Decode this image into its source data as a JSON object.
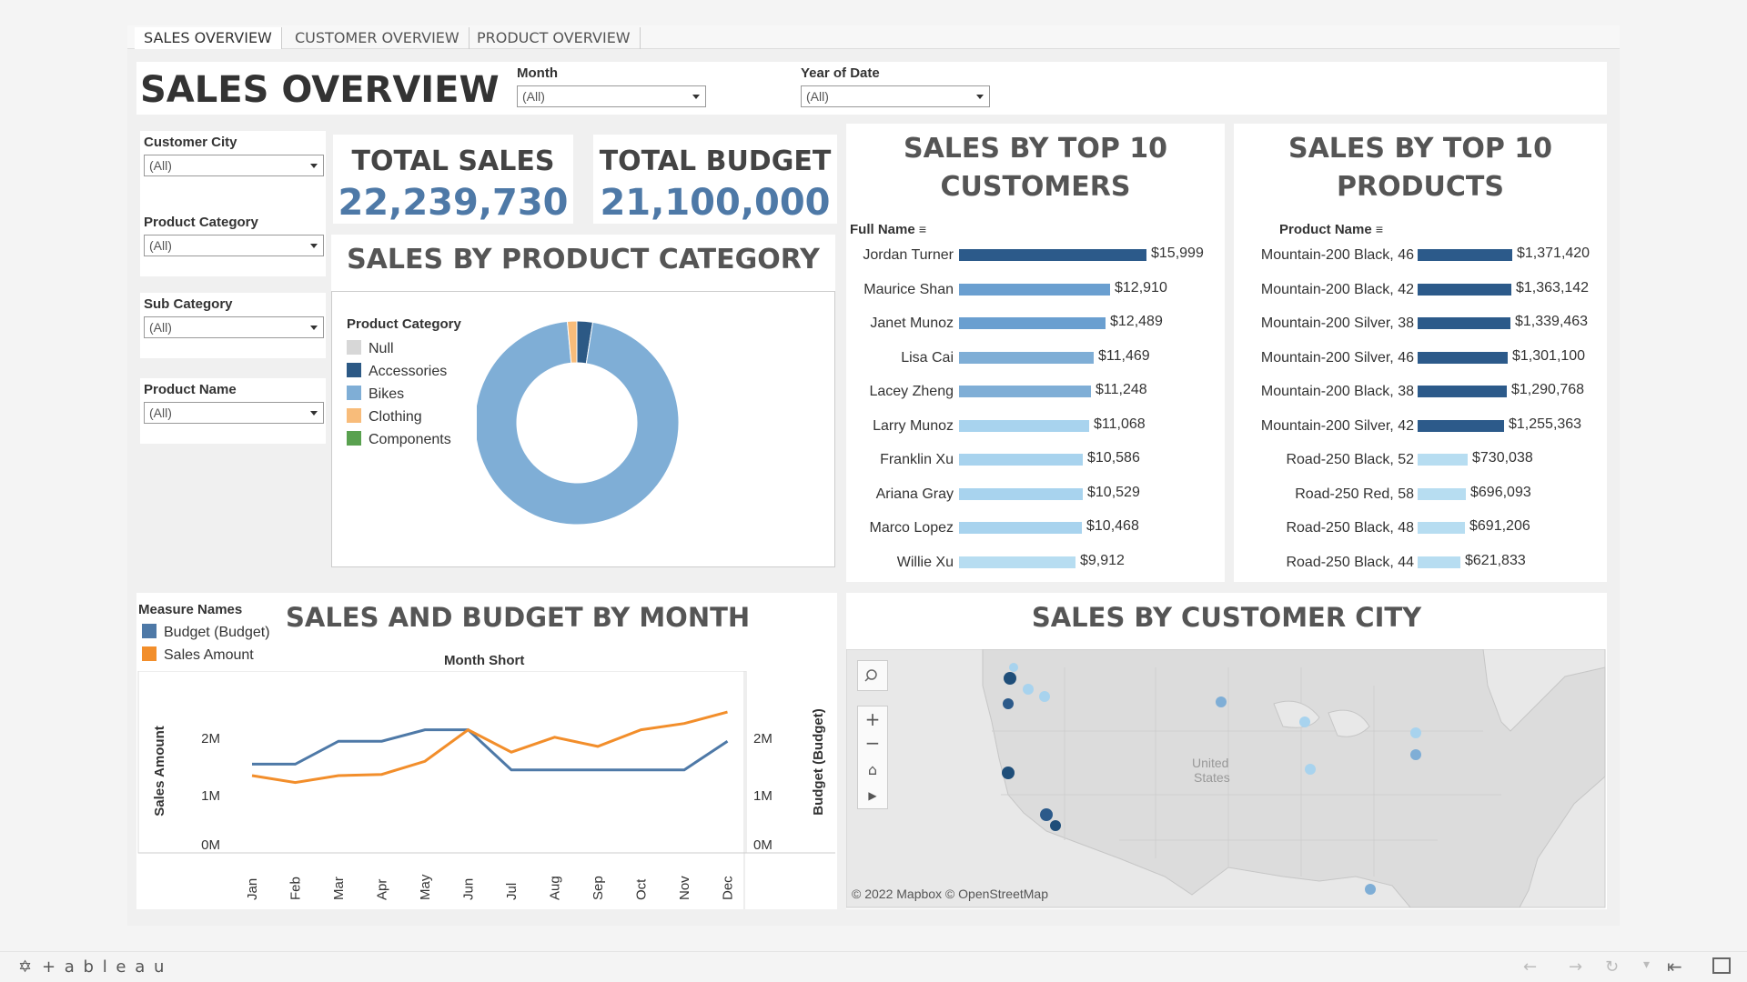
{
  "tabs": [
    {
      "label": "SALES OVERVIEW",
      "active": true
    },
    {
      "label": "CUSTOMER OVERVIEW",
      "active": false
    },
    {
      "label": "PRODUCT OVERVIEW",
      "active": false
    }
  ],
  "page_title": "SALES OVERVIEW",
  "filters": {
    "month": {
      "label": "Month",
      "value": "(All)"
    },
    "year": {
      "label": "Year of Date",
      "value": "(All)"
    },
    "customer_city": {
      "label": "Customer City",
      "value": "(All)"
    },
    "product_category": {
      "label": "Product Category",
      "value": "(All)"
    },
    "sub_category": {
      "label": "Sub Category",
      "value": "(All)"
    },
    "product_name": {
      "label": "Product Name",
      "value": "(All)"
    }
  },
  "kpis": {
    "total_sales": {
      "label": "TOTAL SALES",
      "value": "22,239,730"
    },
    "total_budget": {
      "label": "TOTAL BUDGET",
      "value": "21,100,000"
    }
  },
  "category_chart": {
    "title": "SALES BY PRODUCT CATEGORY",
    "legend_title": "Product Category",
    "legend": [
      {
        "name": "Null",
        "color": "#d7d7d7"
      },
      {
        "name": "Accessories",
        "color": "#2c5985"
      },
      {
        "name": "Bikes",
        "color": "#7faed6"
      },
      {
        "name": "Clothing",
        "color": "#f8bc7a"
      },
      {
        "name": "Components",
        "color": "#59a14f"
      }
    ]
  },
  "top_customers": {
    "title_line1": "SALES BY TOP 10",
    "title_line2": "CUSTOMERS",
    "column_header": "Full Name",
    "rows": [
      {
        "name": "Jordan Turner",
        "value": 15999,
        "label": "$15,999",
        "color": "#2c5a8a"
      },
      {
        "name": "Maurice Shan",
        "value": 12910,
        "label": "$12,910",
        "color": "#6a9fd0"
      },
      {
        "name": "Janet Munoz",
        "value": 12489,
        "label": "$12,489",
        "color": "#6a9fd0"
      },
      {
        "name": "Lisa Cai",
        "value": 11469,
        "label": "$11,469",
        "color": "#7faed6"
      },
      {
        "name": "Lacey Zheng",
        "value": 11248,
        "label": "$11,248",
        "color": "#7faed6"
      },
      {
        "name": "Larry Munoz",
        "value": 11068,
        "label": "$11,068",
        "color": "#a8d3ee"
      },
      {
        "name": "Franklin Xu",
        "value": 10586,
        "label": "$10,586",
        "color": "#a8d3ee"
      },
      {
        "name": "Ariana Gray",
        "value": 10529,
        "label": "$10,529",
        "color": "#a8d3ee"
      },
      {
        "name": "Marco Lopez",
        "value": 10468,
        "label": "$10,468",
        "color": "#a8d3ee"
      },
      {
        "name": "Willie Xu",
        "value": 9912,
        "label": "$9,912",
        "color": "#b7ddf1"
      }
    ]
  },
  "top_products": {
    "title_line1": "SALES BY TOP 10",
    "title_line2": "PRODUCTS",
    "column_header": "Product Name",
    "rows": [
      {
        "name": "Mountain-200 Black, 46",
        "value": 1371420,
        "label": "$1,371,420",
        "color": "#2c5a8a"
      },
      {
        "name": "Mountain-200 Black, 42",
        "value": 1363142,
        "label": "$1,363,142",
        "color": "#2c5a8a"
      },
      {
        "name": "Mountain-200 Silver, 38",
        "value": 1339463,
        "label": "$1,339,463",
        "color": "#2c5a8a"
      },
      {
        "name": "Mountain-200 Silver, 46",
        "value": 1301100,
        "label": "$1,301,100",
        "color": "#2c5a8a"
      },
      {
        "name": "Mountain-200 Black, 38",
        "value": 1290768,
        "label": "$1,290,768",
        "color": "#2c5a8a"
      },
      {
        "name": "Mountain-200 Silver, 42",
        "value": 1255363,
        "label": "$1,255,363",
        "color": "#2c5a8a"
      },
      {
        "name": "Road-250 Black, 52",
        "value": 730038,
        "label": "$730,038",
        "color": "#b7ddf1"
      },
      {
        "name": "Road-250 Red, 58",
        "value": 696093,
        "label": "$696,093",
        "color": "#b7ddf1"
      },
      {
        "name": "Road-250 Black, 48",
        "value": 691206,
        "label": "$691,206",
        "color": "#b7ddf1"
      },
      {
        "name": "Road-250 Black, 44",
        "value": 621833,
        "label": "$621,833",
        "color": "#b7ddf1"
      }
    ]
  },
  "monthly_chart": {
    "title": "SALES AND BUDGET BY MONTH",
    "legend_title": "Measure Names",
    "legend": [
      {
        "name": "Budget (Budget)",
        "color": "#4e79a7"
      },
      {
        "name": "Sales Amount",
        "color": "#f28e2b"
      }
    ],
    "x_header": "Month Short",
    "y_left_label": "Sales Amount",
    "y_right_label": "Budget (Budget)",
    "y_ticks": [
      "0M",
      "1M",
      "2M"
    ]
  },
  "map": {
    "title": "SALES BY CUSTOMER CITY",
    "country_label_1": "United",
    "country_label_2": "States",
    "attribution": "© 2022 Mapbox  © OpenStreetMap"
  },
  "footer": {
    "brand": "+ a b l e a u"
  },
  "chart_data": [
    {
      "type": "pie",
      "title": "SALES BY PRODUCT CATEGORY",
      "categories": [
        "Null",
        "Accessories",
        "Bikes",
        "Clothing",
        "Components"
      ],
      "values": [
        0,
        2.5,
        96.0,
        1.5,
        0
      ],
      "colors": [
        "#d7d7d7",
        "#2c5985",
        "#7faed6",
        "#f8bc7a",
        "#59a14f"
      ]
    },
    {
      "type": "bar",
      "title": "SALES BY TOP 10 CUSTOMERS",
      "categories": [
        "Jordan Turner",
        "Maurice Shan",
        "Janet Munoz",
        "Lisa Cai",
        "Lacey Zheng",
        "Larry Munoz",
        "Franklin Xu",
        "Ariana Gray",
        "Marco Lopez",
        "Willie Xu"
      ],
      "values": [
        15999,
        12910,
        12489,
        11469,
        11248,
        11068,
        10586,
        10529,
        10468,
        9912
      ]
    },
    {
      "type": "bar",
      "title": "SALES BY TOP 10 PRODUCTS",
      "categories": [
        "Mountain-200 Black, 46",
        "Mountain-200 Black, 42",
        "Mountain-200 Silver, 38",
        "Mountain-200 Silver, 46",
        "Mountain-200 Black, 38",
        "Mountain-200 Silver, 42",
        "Road-250 Black, 52",
        "Road-250 Red, 58",
        "Road-250 Black, 48",
        "Road-250 Black, 44"
      ],
      "values": [
        1371420,
        1363142,
        1339463,
        1301100,
        1290768,
        1255363,
        730038,
        696093,
        691206,
        621833
      ]
    },
    {
      "type": "line",
      "title": "SALES AND BUDGET BY MONTH",
      "xlabel": "Month Short",
      "ylabel": "Sales Amount",
      "categories": [
        "Jan",
        "Feb",
        "Mar",
        "Apr",
        "May",
        "Jun",
        "Jul",
        "Aug",
        "Sep",
        "Oct",
        "Nov",
        "Dec"
      ],
      "ylim": [
        0,
        2500000
      ],
      "series": [
        {
          "name": "Budget (Budget)",
          "color": "#4e79a7",
          "values": [
            1550000,
            1550000,
            1950000,
            1950000,
            2150000,
            2150000,
            1450000,
            1450000,
            1450000,
            1450000,
            1450000,
            1950000
          ]
        },
        {
          "name": "Sales Amount",
          "color": "#f28e2b",
          "values": [
            1350000,
            1230000,
            1350000,
            1370000,
            1600000,
            2150000,
            1760000,
            2020000,
            1860000,
            2150000,
            2260000,
            2460000
          ]
        }
      ]
    }
  ]
}
